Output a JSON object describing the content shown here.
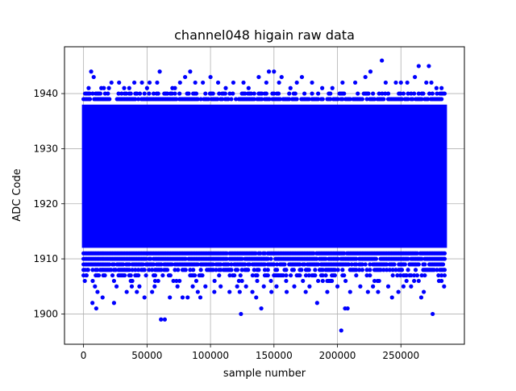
{
  "chart_data": {
    "type": "scatter",
    "title": "channel048 higain raw data",
    "xlabel": "sample number",
    "ylabel": "ADC Code",
    "xlim": [
      -15000,
      300000
    ],
    "ylim": [
      1894.5,
      1948.5
    ],
    "xticks": [
      0,
      50000,
      100000,
      150000,
      200000,
      250000
    ],
    "yticks": [
      1900,
      1910,
      1920,
      1930,
      1940
    ],
    "grid": true,
    "marker_color": "#0000ff",
    "band": {
      "x_range": [
        0,
        285000
      ],
      "y_range": [
        1912,
        1938
      ]
    },
    "points": [
      [
        1000,
        1906
      ],
      [
        2000,
        1907
      ],
      [
        3000,
        1908
      ],
      [
        4000,
        1941
      ],
      [
        5000,
        1939
      ],
      [
        6000,
        1944
      ],
      [
        7000,
        1902
      ],
      [
        8000,
        1943
      ],
      [
        9000,
        1905
      ],
      [
        10000,
        1901
      ],
      [
        11000,
        1904
      ],
      [
        12000,
        1939
      ],
      [
        14000,
        1941
      ],
      [
        15000,
        1903
      ],
      [
        16000,
        1941
      ],
      [
        17000,
        1940
      ],
      [
        20000,
        1941
      ],
      [
        22000,
        1942
      ],
      [
        24000,
        1902
      ],
      [
        26000,
        1905
      ],
      [
        28000,
        1942
      ],
      [
        30000,
        1940
      ],
      [
        32000,
        1941
      ],
      [
        34000,
        1904
      ],
      [
        36000,
        1941
      ],
      [
        38000,
        1905
      ],
      [
        40000,
        1942
      ],
      [
        42000,
        1904
      ],
      [
        44000,
        1905
      ],
      [
        46000,
        1942
      ],
      [
        48000,
        1903
      ],
      [
        50000,
        1941
      ],
      [
        52000,
        1942
      ],
      [
        54000,
        1904
      ],
      [
        56000,
        1905
      ],
      [
        58000,
        1942
      ],
      [
        60000,
        1944
      ],
      [
        61000,
        1899
      ],
      [
        64000,
        1899
      ],
      [
        66000,
        1939
      ],
      [
        68000,
        1903
      ],
      [
        70000,
        1941
      ],
      [
        72000,
        1941
      ],
      [
        74000,
        1905
      ],
      [
        76000,
        1942
      ],
      [
        78000,
        1903
      ],
      [
        80000,
        1943
      ],
      [
        82000,
        1903
      ],
      [
        84000,
        1944
      ],
      [
        86000,
        1905
      ],
      [
        88000,
        1942
      ],
      [
        90000,
        1904
      ],
      [
        92000,
        1903
      ],
      [
        94000,
        1942
      ],
      [
        96000,
        1905
      ],
      [
        100000,
        1943
      ],
      [
        103000,
        1904
      ],
      [
        106000,
        1942
      ],
      [
        108000,
        1905
      ],
      [
        112000,
        1941
      ],
      [
        115000,
        1904
      ],
      [
        118000,
        1942
      ],
      [
        121000,
        1905
      ],
      [
        123000,
        1904
      ],
      [
        124000,
        1900
      ],
      [
        126000,
        1942
      ],
      [
        128000,
        1905
      ],
      [
        130000,
        1941
      ],
      [
        133000,
        1904
      ],
      [
        136000,
        1903
      ],
      [
        138000,
        1943
      ],
      [
        140000,
        1901
      ],
      [
        142000,
        1905
      ],
      [
        144000,
        1942
      ],
      [
        146000,
        1944
      ],
      [
        148000,
        1904
      ],
      [
        150000,
        1944
      ],
      [
        152000,
        1905
      ],
      [
        154000,
        1942
      ],
      [
        156000,
        1943
      ],
      [
        160000,
        1904
      ],
      [
        163000,
        1941
      ],
      [
        166000,
        1905
      ],
      [
        168000,
        1942
      ],
      [
        172000,
        1943
      ],
      [
        175000,
        1904
      ],
      [
        178000,
        1905
      ],
      [
        180000,
        1942
      ],
      [
        184000,
        1902
      ],
      [
        188000,
        1941
      ],
      [
        192000,
        1904
      ],
      [
        196000,
        1941
      ],
      [
        200000,
        1905
      ],
      [
        203000,
        1897
      ],
      [
        204000,
        1942
      ],
      [
        206000,
        1901
      ],
      [
        208000,
        1901
      ],
      [
        210000,
        1904
      ],
      [
        214000,
        1942
      ],
      [
        218000,
        1905
      ],
      [
        222000,
        1943
      ],
      [
        224000,
        1904
      ],
      [
        226000,
        1944
      ],
      [
        228000,
        1905
      ],
      [
        232000,
        1904
      ],
      [
        235000,
        1946
      ],
      [
        238000,
        1942
      ],
      [
        240000,
        1905
      ],
      [
        243000,
        1903
      ],
      [
        246000,
        1942
      ],
      [
        248000,
        1904
      ],
      [
        250000,
        1942
      ],
      [
        252000,
        1905
      ],
      [
        255000,
        1942
      ],
      [
        258000,
        1905
      ],
      [
        261000,
        1943
      ],
      [
        264000,
        1945
      ],
      [
        266000,
        1903
      ],
      [
        268000,
        1904
      ],
      [
        270000,
        1942
      ],
      [
        272000,
        1945
      ],
      [
        274000,
        1942
      ],
      [
        275000,
        1900
      ],
      [
        278000,
        1941
      ],
      [
        280000,
        1906
      ],
      [
        282000,
        1941
      ],
      [
        284000,
        1905
      ]
    ]
  }
}
